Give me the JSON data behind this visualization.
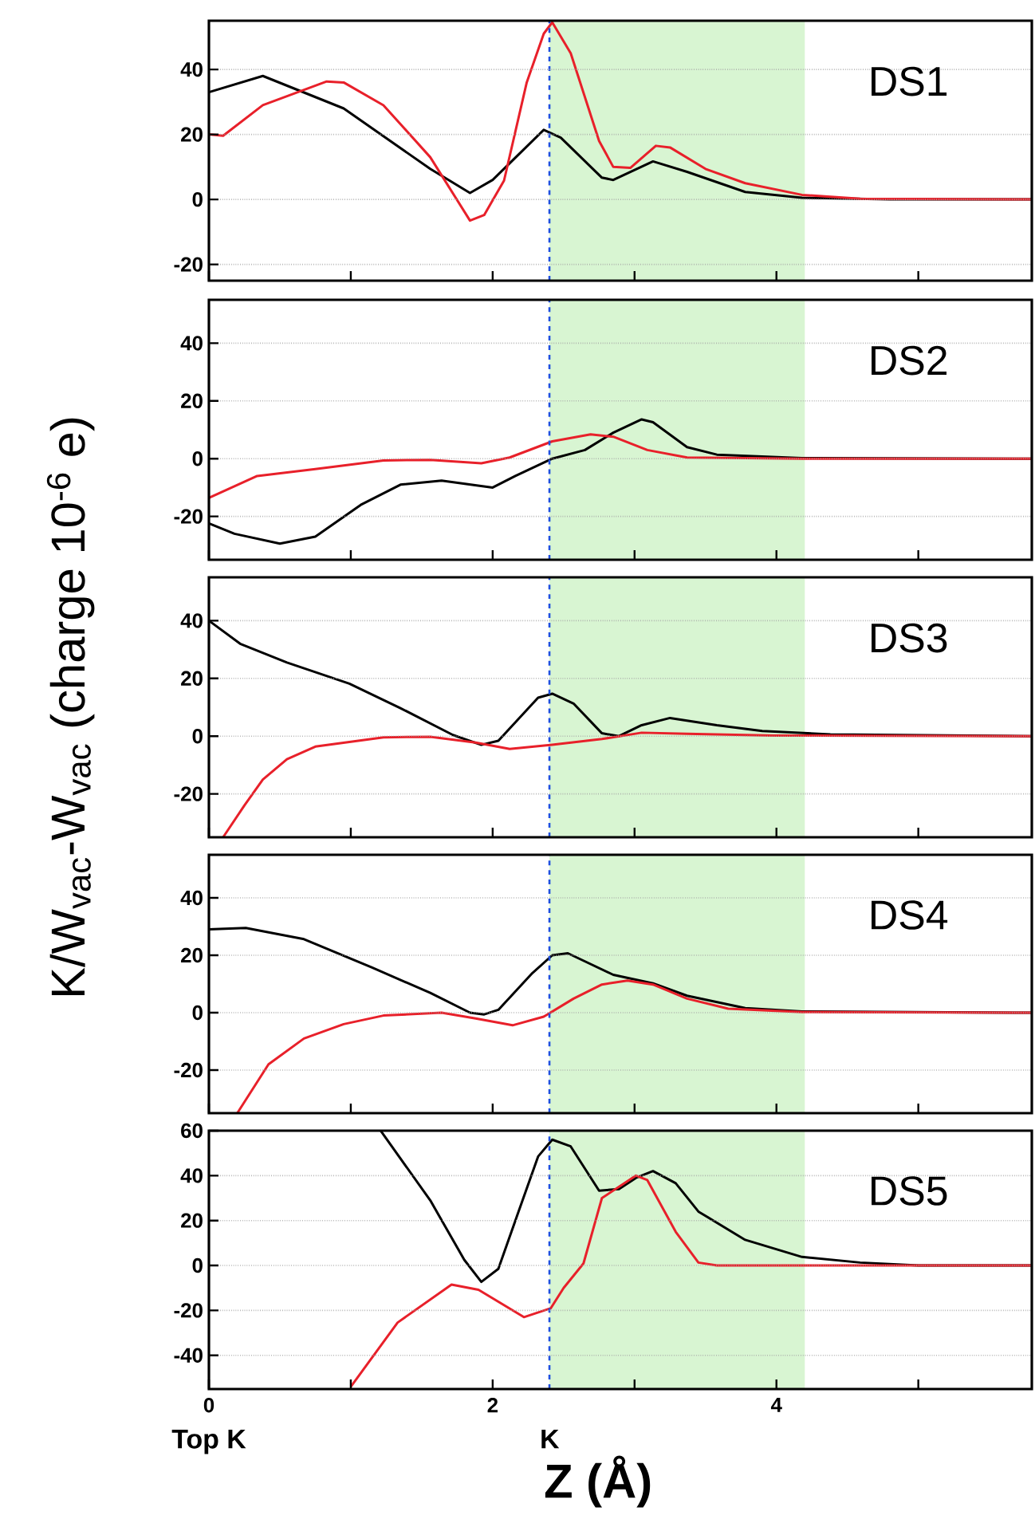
{
  "chart_data": [
    {
      "type": "line",
      "title": "DS1",
      "xlim": [
        0,
        5.8
      ],
      "ylim": [
        -25,
        55
      ],
      "xticks": [
        0,
        {
          "value": 1,
          "label": null
        },
        2,
        {
          "value": 3,
          "label": null
        },
        4,
        {
          "value": 5,
          "label": null
        }
      ],
      "yticks": [
        -20,
        0,
        20,
        40
      ],
      "tick_labels": "y",
      "grid": "y",
      "bands": [
        {
          "axis": "x",
          "from": 2.4,
          "to": 4.2,
          "color": "#d8f5d2"
        }
      ],
      "ref_lines": [
        {
          "axis": "x",
          "value": 2.4,
          "color": "#1f4fe0",
          "line_style": "dashed"
        }
      ],
      "series": [
        {
          "color": "#000000",
          "x": [
            0,
            0.38,
            0.95,
            1.56,
            1.84,
            2.0,
            2.36,
            2.48,
            2.77,
            2.85,
            3.13,
            3.37,
            3.78,
            4.18,
            4.8,
            5.8
          ],
          "values": [
            33,
            38,
            28,
            9.4,
            2,
            6,
            21.4,
            19,
            6.7,
            6,
            11.7,
            8.5,
            2.3,
            0.5,
            0,
            0
          ]
        },
        {
          "color": "#e8202a",
          "x": [
            0,
            0.1,
            0.38,
            0.83,
            0.95,
            1.23,
            1.56,
            1.84,
            1.94,
            2.08,
            2.24,
            2.36,
            2.42,
            2.55,
            2.75,
            2.85,
            2.97,
            3.15,
            3.25,
            3.5,
            3.78,
            4.18,
            4.59,
            5.8
          ],
          "values": [
            20,
            19.6,
            29,
            36.3,
            36,
            29,
            13,
            -6.5,
            -4.8,
            5.8,
            36,
            51,
            54.5,
            45,
            18,
            10,
            9.7,
            16.5,
            16,
            9.4,
            5,
            1.4,
            0.2,
            0
          ]
        }
      ]
    },
    {
      "type": "line",
      "title": "DS2",
      "xlim": [
        0,
        5.8
      ],
      "ylim": [
        -35,
        55
      ],
      "xticks": [
        0,
        {
          "value": 1,
          "label": null
        },
        2,
        {
          "value": 3,
          "label": null
        },
        4,
        {
          "value": 5,
          "label": null
        }
      ],
      "yticks": [
        -20,
        0,
        20,
        40
      ],
      "tick_labels": "y",
      "grid": "y",
      "bands": [
        {
          "axis": "x",
          "from": 2.4,
          "to": 4.2,
          "color": "#d8f5d2"
        }
      ],
      "ref_lines": [
        {
          "axis": "x",
          "value": 2.4,
          "color": "#1f4fe0",
          "line_style": "dashed"
        }
      ],
      "series": [
        {
          "color": "#000000",
          "x": [
            0,
            0.18,
            0.5,
            0.75,
            1.07,
            1.35,
            1.64,
            2.0,
            2.16,
            2.42,
            2.65,
            2.85,
            3.05,
            3.13,
            3.37,
            3.58,
            4.18,
            5.8
          ],
          "values": [
            -22.4,
            -26,
            -29.4,
            -27,
            -16,
            -9,
            -7.6,
            -10,
            -6,
            0,
            3,
            9,
            13.6,
            12.6,
            4,
            1.4,
            0.2,
            0
          ]
        },
        {
          "color": "#e8202a",
          "x": [
            0,
            0.34,
            0.75,
            1.23,
            1.56,
            1.92,
            2.12,
            2.42,
            2.69,
            2.85,
            3.09,
            3.37,
            4.18,
            5.8
          ],
          "values": [
            -13.6,
            -6,
            -3.6,
            -0.6,
            -0.4,
            -1.6,
            0.4,
            6,
            8.4,
            7.6,
            3,
            0.4,
            0,
            0
          ]
        }
      ]
    },
    {
      "type": "line",
      "title": "DS3",
      "ylabel": "K/W$_{vac}$-W$_{vac}$ (charge 10$^{-6}$ e)",
      "xlim": [
        0,
        5.8
      ],
      "ylim": [
        -35,
        55
      ],
      "xticks": [
        0,
        {
          "value": 1,
          "label": null
        },
        2,
        {
          "value": 3,
          "label": null
        },
        4,
        {
          "value": 5,
          "label": null
        }
      ],
      "yticks": [
        -20,
        0,
        20,
        40
      ],
      "tick_labels": "y",
      "grid": "y",
      "bands": [
        {
          "axis": "x",
          "from": 2.4,
          "to": 4.2,
          "color": "#d8f5d2"
        }
      ],
      "ref_lines": [
        {
          "axis": "x",
          "value": 2.4,
          "color": "#1f4fe0",
          "line_style": "dashed"
        }
      ],
      "series": [
        {
          "color": "#000000",
          "x": [
            0,
            0.22,
            0.55,
            0.99,
            1.35,
            1.72,
            1.92,
            2.04,
            2.32,
            2.42,
            2.57,
            2.77,
            2.89,
            3.05,
            3.25,
            3.58,
            3.9,
            4.38,
            5.8
          ],
          "values": [
            40,
            32,
            25.5,
            18.2,
            9.7,
            0.4,
            -3,
            -1.6,
            13.3,
            14.7,
            11.3,
            1,
            0,
            3.8,
            6.3,
            3.8,
            1.8,
            0.6,
            0
          ]
        },
        {
          "color": "#e8202a",
          "x": [
            0.1,
            0.25,
            0.38,
            0.55,
            0.75,
            1.23,
            1.56,
            1.88,
            2.12,
            2.42,
            2.77,
            3.05,
            3.37,
            3.98,
            5.8
          ],
          "values": [
            -35,
            -24,
            -15,
            -8,
            -3.6,
            -0.4,
            -0.2,
            -2.2,
            -4.4,
            -3,
            -1,
            1.2,
            0.8,
            0.2,
            0
          ]
        }
      ]
    },
    {
      "type": "line",
      "title": "DS4",
      "xlim": [
        0,
        5.8
      ],
      "ylim": [
        -35,
        55
      ],
      "xticks": [
        0,
        {
          "value": 1,
          "label": null
        },
        2,
        {
          "value": 3,
          "label": null
        },
        4,
        {
          "value": 5,
          "label": null
        }
      ],
      "yticks": [
        -20,
        0,
        20,
        40
      ],
      "tick_labels": "y",
      "grid": "y",
      "bands": [
        {
          "axis": "x",
          "from": 2.4,
          "to": 4.2,
          "color": "#d8f5d2"
        }
      ],
      "ref_lines": [
        {
          "axis": "x",
          "value": 2.4,
          "color": "#1f4fe0",
          "line_style": "dashed"
        }
      ],
      "series": [
        {
          "color": "#000000",
          "x": [
            0,
            0.26,
            0.67,
            1.15,
            1.56,
            1.84,
            1.94,
            2.04,
            2.28,
            2.42,
            2.53,
            2.85,
            3.13,
            3.37,
            3.78,
            4.18,
            5.8
          ],
          "values": [
            29,
            29.5,
            25.6,
            15.7,
            6.9,
            0,
            -0.6,
            1,
            13.8,
            20,
            20.7,
            13.2,
            10.2,
            5.9,
            1.6,
            0.4,
            0
          ]
        },
        {
          "color": "#e8202a",
          "x": [
            0.2,
            0.42,
            0.67,
            0.95,
            1.23,
            1.64,
            1.88,
            2.14,
            2.36,
            2.57,
            2.77,
            2.95,
            3.13,
            3.37,
            3.66,
            4.18,
            5.8
          ],
          "values": [
            -35,
            -18,
            -9,
            -4,
            -1,
            0,
            -2,
            -4.4,
            -1.4,
            4.9,
            9.8,
            11.2,
            9.8,
            4.9,
            1.4,
            0.2,
            0
          ]
        }
      ]
    },
    {
      "type": "line",
      "title": "DS5",
      "xlabel": "Z (Å)",
      "annotations": [
        "Top K",
        "K"
      ],
      "xlim": [
        0,
        5.8
      ],
      "ylim": [
        -55,
        60
      ],
      "xticks": [
        0,
        {
          "value": 1,
          "label": null
        },
        2,
        {
          "value": 3,
          "label": null
        },
        4,
        {
          "value": 5,
          "label": null
        }
      ],
      "yticks": [
        -40,
        -20,
        0,
        20,
        40,
        60
      ],
      "grid": "y",
      "bands": [
        {
          "axis": "x",
          "from": 2.4,
          "to": 4.2,
          "color": "#d8f5d2"
        }
      ],
      "ref_lines": [
        {
          "axis": "x",
          "value": 2.4,
          "color": "#1f4fe0",
          "line_style": "dashed"
        }
      ],
      "series": [
        {
          "color": "#000000",
          "x": [
            1.21,
            1.56,
            1.8,
            1.92,
            2.04,
            2.16,
            2.32,
            2.42,
            2.55,
            2.75,
            2.89,
            3.01,
            3.13,
            3.29,
            3.45,
            3.78,
            4.18,
            4.59,
            5.0,
            5.8
          ],
          "values": [
            60,
            29,
            2.5,
            -7.3,
            -1.5,
            20,
            48.5,
            56,
            53,
            33.3,
            34,
            39,
            42,
            36.6,
            24,
            11.4,
            3.8,
            1.3,
            0,
            0
          ]
        },
        {
          "color": "#e8202a",
          "x": [
            1.0,
            1.33,
            1.71,
            1.9,
            2.22,
            2.41,
            2.5,
            2.64,
            2.77,
            3.01,
            3.09,
            3.29,
            3.45,
            3.58,
            5.8
          ],
          "values": [
            -54,
            -25.4,
            -8.5,
            -10.8,
            -23,
            -19,
            -10,
            0.9,
            30,
            40,
            38,
            15,
            1.3,
            0,
            0
          ]
        }
      ]
    }
  ]
}
